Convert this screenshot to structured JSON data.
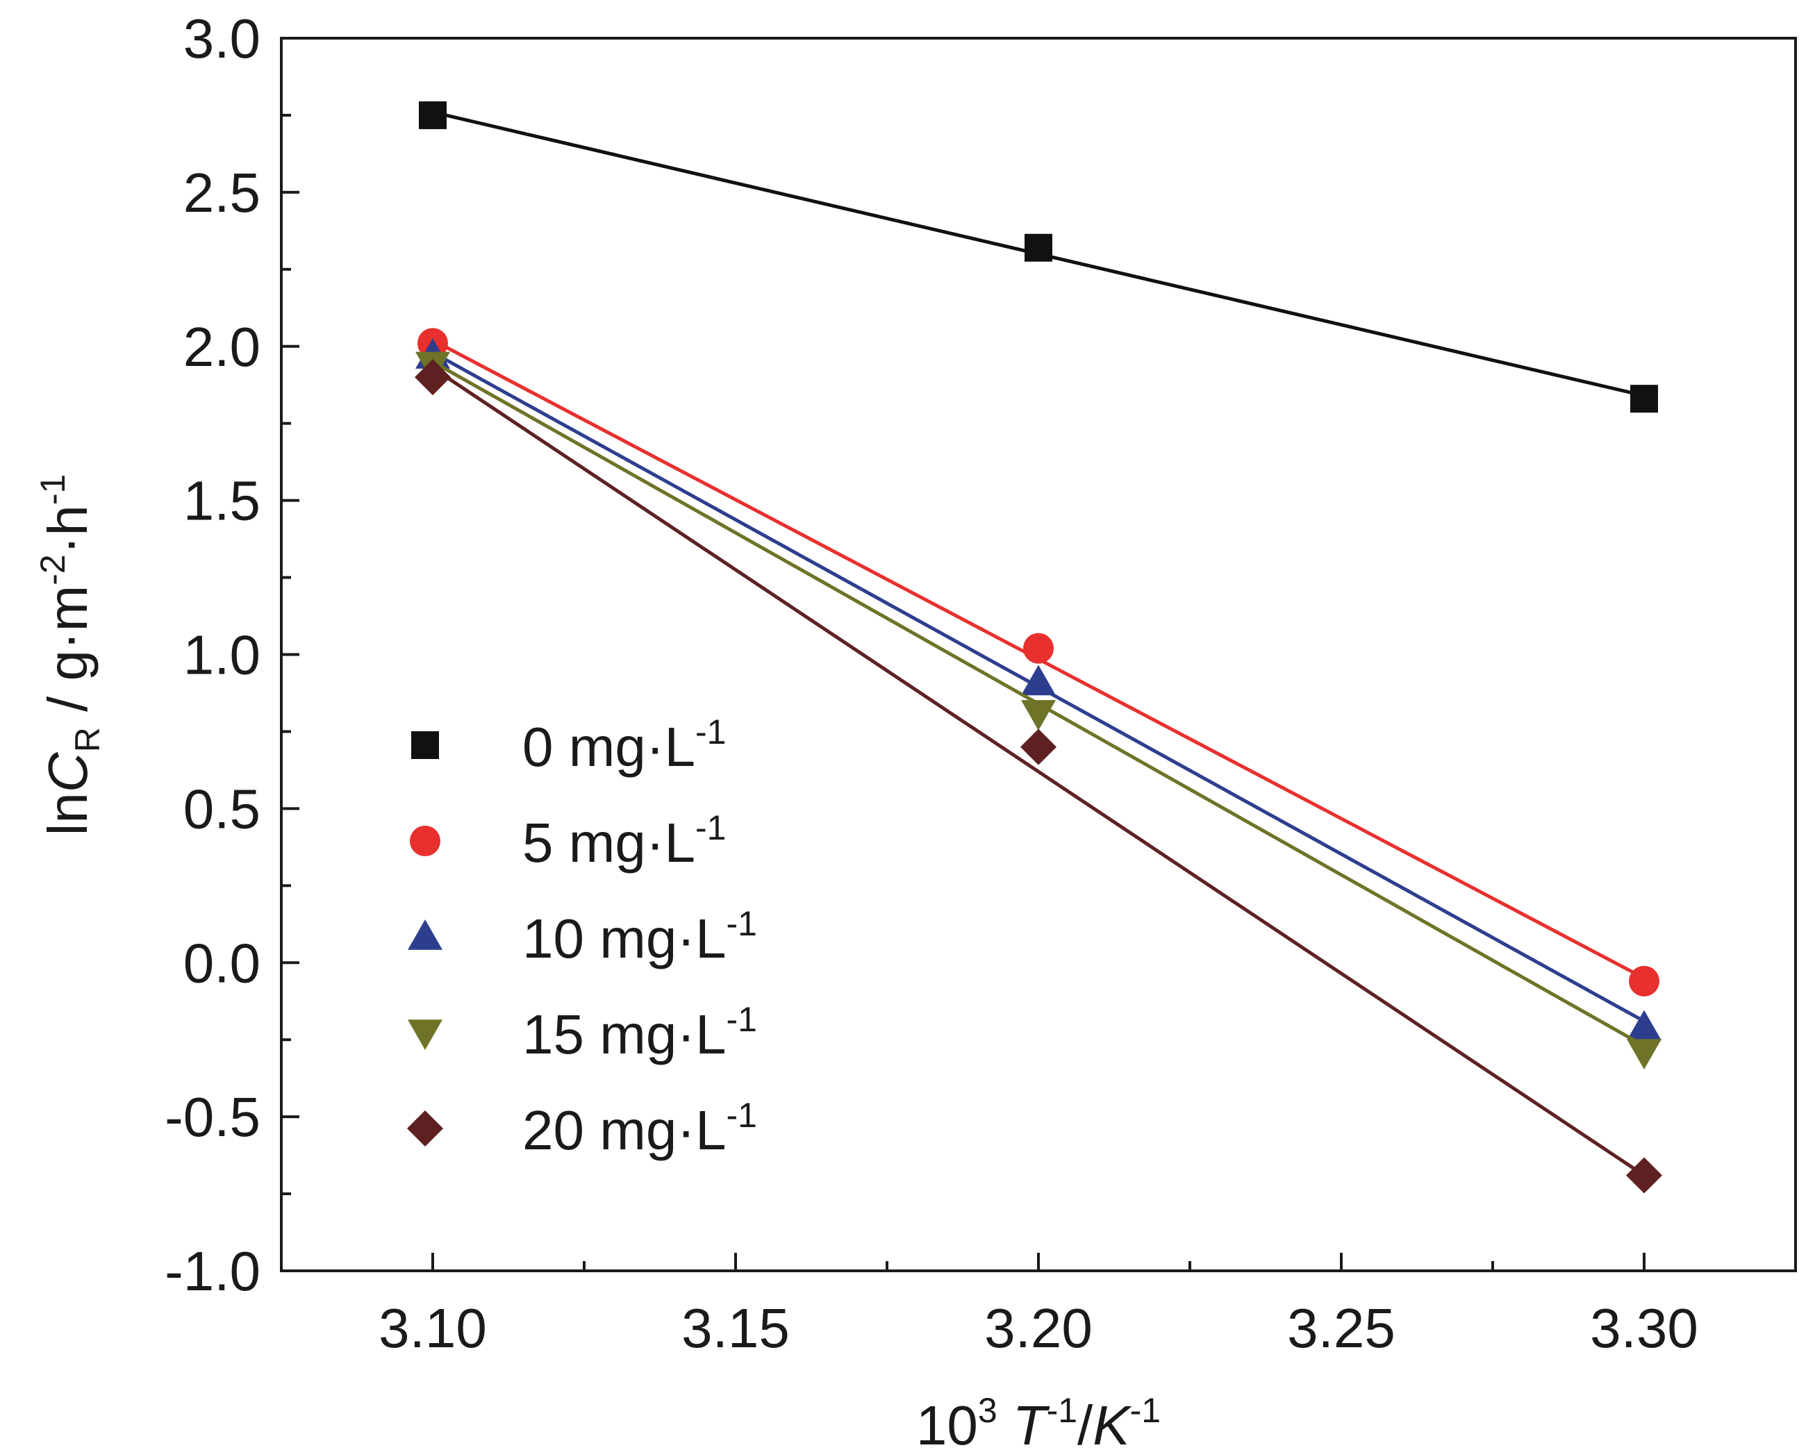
{
  "chart_data": {
    "type": "line",
    "xlabel": {
      "base": "10",
      "base_sup": "3",
      "var1": "T",
      "var1_sup": "-1",
      "sep": "/",
      "var2": "K",
      "var2_sup": "-1"
    },
    "ylabel": {
      "prefix": "ln",
      "var": "C",
      "var_sub": "R",
      "unit_a": " / g·m",
      "unit_a_sup": "-2",
      "unit_b": "·h",
      "unit_b_sup": "-1"
    },
    "xlim": [
      3.075,
      3.325
    ],
    "ylim": [
      -1.0,
      3.0
    ],
    "x_ticks": [
      {
        "value": 3.1,
        "label": "3.10"
      },
      {
        "value": 3.15,
        "label": "3.15"
      },
      {
        "value": 3.2,
        "label": "3.20"
      },
      {
        "value": 3.25,
        "label": "3.25"
      },
      {
        "value": 3.3,
        "label": "3.30"
      }
    ],
    "x_minor_ticks": [
      3.125,
      3.175,
      3.225,
      3.275
    ],
    "y_ticks": [
      {
        "value": 3.0,
        "label": "3.0"
      },
      {
        "value": 2.5,
        "label": "2.5"
      },
      {
        "value": 2.0,
        "label": "2.0"
      },
      {
        "value": 1.5,
        "label": "1.5"
      },
      {
        "value": 1.0,
        "label": "1.0"
      },
      {
        "value": 0.5,
        "label": "0.5"
      },
      {
        "value": 0.0,
        "label": "0.0"
      },
      {
        "value": -0.5,
        "label": "-0.5"
      },
      {
        "value": -1.0,
        "label": "-1.0"
      }
    ],
    "y_minor_ticks": [
      2.75,
      2.25,
      1.75,
      1.25,
      0.75,
      0.25,
      -0.25,
      -0.75
    ],
    "grid": false,
    "legend_position": "center-left",
    "x": [
      3.1,
      3.2,
      3.3
    ],
    "series": [
      {
        "name": "0 mg·L",
        "name_sup": "-1",
        "marker": "square",
        "color": "#111111",
        "values": [
          2.75,
          2.32,
          1.83
        ],
        "fit": [
          2.76,
          1.84
        ]
      },
      {
        "name": "5 mg·L",
        "name_sup": "-1",
        "marker": "circle",
        "color": "#e8302e",
        "values": [
          2.01,
          1.02,
          -0.06
        ],
        "fit": [
          2.02,
          -0.05
        ]
      },
      {
        "name": "10 mg·L",
        "name_sup": "-1",
        "marker": "triangle-up",
        "color": "#2e3e8f",
        "values": [
          1.97,
          0.91,
          -0.21
        ],
        "fit": [
          1.98,
          -0.19
        ]
      },
      {
        "name": "15 mg·L",
        "name_sup": "-1",
        "marker": "triangle-down",
        "color": "#6e7327",
        "values": [
          1.94,
          0.81,
          -0.29
        ],
        "fit": [
          1.95,
          -0.27
        ]
      },
      {
        "name": "20 mg·L",
        "name_sup": "-1",
        "marker": "diamond",
        "color": "#5e2020",
        "values": [
          1.9,
          0.7,
          -0.69
        ],
        "fit": [
          1.93,
          -0.69
        ]
      }
    ]
  }
}
